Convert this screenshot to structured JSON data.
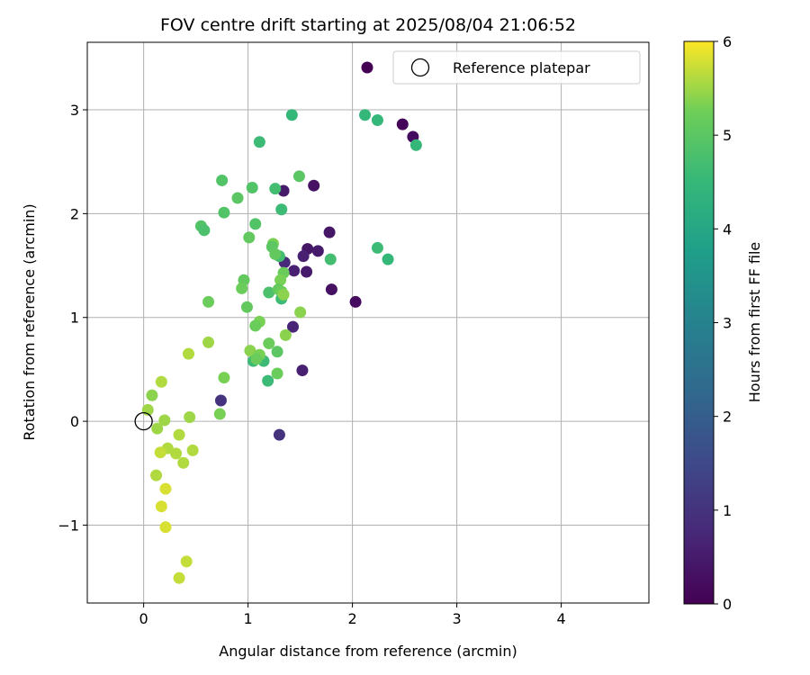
{
  "chart_data": {
    "type": "scatter",
    "title": "FOV centre drift starting at 2025/08/04 21:06:52",
    "xlabel": "Angular distance from reference (arcmin)",
    "ylabel": "Rotation from reference (arcmin)",
    "xlim": [
      -0.54,
      4.84
    ],
    "ylim": [
      -1.75,
      3.65
    ],
    "xticks": [
      0,
      1,
      2,
      3,
      4
    ],
    "xtick_labels": [
      "0",
      "1",
      "2",
      "3",
      "4"
    ],
    "yticks": [
      -1,
      0,
      1,
      2,
      3
    ],
    "ytick_labels": [
      "−1",
      "0",
      "1",
      "2",
      "3"
    ],
    "grid": true,
    "legend_position": "top-right",
    "legend": {
      "entries": [
        {
          "label": ""
        },
        {
          "label": "Reference platepar"
        }
      ]
    },
    "colorbar": {
      "label": "Hours from first FF file",
      "range": [
        0,
        6
      ],
      "ticks": [
        0,
        1,
        2,
        3,
        4,
        5,
        6
      ],
      "tick_labels": [
        "0",
        "1",
        "2",
        "3",
        "4",
        "5",
        "6"
      ],
      "colormap": "viridis"
    },
    "reference": {
      "x": 0,
      "y": 0
    },
    "points": [
      {
        "x": 2.48,
        "y": 2.86,
        "c": 0.1
      },
      {
        "x": 2.58,
        "y": 2.74,
        "c": 0.2
      },
      {
        "x": 1.63,
        "y": 2.27,
        "c": 0.3
      },
      {
        "x": 1.34,
        "y": 2.22,
        "c": 0.5
      },
      {
        "x": 1.78,
        "y": 1.82,
        "c": 0.4
      },
      {
        "x": 1.57,
        "y": 1.66,
        "c": 0.4
      },
      {
        "x": 1.67,
        "y": 1.64,
        "c": 0.5
      },
      {
        "x": 1.53,
        "y": 1.59,
        "c": 0.6
      },
      {
        "x": 1.35,
        "y": 1.53,
        "c": 0.8
      },
      {
        "x": 1.44,
        "y": 1.45,
        "c": 0.6
      },
      {
        "x": 1.56,
        "y": 1.44,
        "c": 0.5
      },
      {
        "x": 1.8,
        "y": 1.27,
        "c": 0.3
      },
      {
        "x": 2.03,
        "y": 1.15,
        "c": 0.2
      },
      {
        "x": 1.43,
        "y": 0.91,
        "c": 0.7
      },
      {
        "x": 1.52,
        "y": 0.49,
        "c": 0.6
      },
      {
        "x": 0.74,
        "y": 0.2,
        "c": 1.0
      },
      {
        "x": 1.3,
        "y": -0.13,
        "c": 1.0
      },
      {
        "x": 1.42,
        "y": 2.95,
        "c": 4.5
      },
      {
        "x": 2.12,
        "y": 2.95,
        "c": 4.5
      },
      {
        "x": 2.24,
        "y": 2.9,
        "c": 4.5
      },
      {
        "x": 2.61,
        "y": 2.66,
        "c": 4.5
      },
      {
        "x": 1.11,
        "y": 2.69,
        "c": 4.6
      },
      {
        "x": 1.26,
        "y": 2.24,
        "c": 4.7
      },
      {
        "x": 1.32,
        "y": 2.04,
        "c": 4.6
      },
      {
        "x": 2.24,
        "y": 1.67,
        "c": 4.6
      },
      {
        "x": 2.34,
        "y": 1.56,
        "c": 4.5
      },
      {
        "x": 1.79,
        "y": 1.56,
        "c": 4.7
      },
      {
        "x": 1.3,
        "y": 1.59,
        "c": 4.7
      },
      {
        "x": 1.32,
        "y": 1.18,
        "c": 4.6
      },
      {
        "x": 1.2,
        "y": 1.24,
        "c": 4.8
      },
      {
        "x": 1.15,
        "y": 0.58,
        "c": 4.6
      },
      {
        "x": 1.19,
        "y": 0.39,
        "c": 4.6
      },
      {
        "x": 1.05,
        "y": 0.58,
        "c": 4.6
      },
      {
        "x": 0.75,
        "y": 2.32,
        "c": 4.9
      },
      {
        "x": 1.04,
        "y": 2.25,
        "c": 4.9
      },
      {
        "x": 0.9,
        "y": 2.15,
        "c": 5.0
      },
      {
        "x": 1.49,
        "y": 2.36,
        "c": 5.0
      },
      {
        "x": 0.77,
        "y": 2.01,
        "c": 4.9
      },
      {
        "x": 0.55,
        "y": 1.88,
        "c": 4.9
      },
      {
        "x": 0.58,
        "y": 1.84,
        "c": 4.8
      },
      {
        "x": 1.07,
        "y": 1.9,
        "c": 4.9
      },
      {
        "x": 1.01,
        "y": 1.77,
        "c": 5.1
      },
      {
        "x": 1.24,
        "y": 1.71,
        "c": 5.3
      },
      {
        "x": 1.23,
        "y": 1.68,
        "c": 5.0
      },
      {
        "x": 1.26,
        "y": 1.61,
        "c": 5.1
      },
      {
        "x": 1.34,
        "y": 1.43,
        "c": 5.2
      },
      {
        "x": 0.96,
        "y": 1.36,
        "c": 5.1
      },
      {
        "x": 1.31,
        "y": 1.36,
        "c": 5.3
      },
      {
        "x": 0.94,
        "y": 1.28,
        "c": 5.2
      },
      {
        "x": 1.29,
        "y": 1.27,
        "c": 5.1
      },
      {
        "x": 1.32,
        "y": 1.25,
        "c": 5.2
      },
      {
        "x": 1.34,
        "y": 1.22,
        "c": 5.4
      },
      {
        "x": 0.62,
        "y": 1.15,
        "c": 5.2
      },
      {
        "x": 0.99,
        "y": 1.1,
        "c": 5.1
      },
      {
        "x": 1.5,
        "y": 1.05,
        "c": 5.4
      },
      {
        "x": 1.11,
        "y": 0.96,
        "c": 5.3
      },
      {
        "x": 1.07,
        "y": 0.92,
        "c": 5.2
      },
      {
        "x": 1.36,
        "y": 0.83,
        "c": 5.4
      },
      {
        "x": 1.2,
        "y": 0.75,
        "c": 5.2
      },
      {
        "x": 0.62,
        "y": 0.76,
        "c": 5.5
      },
      {
        "x": 1.02,
        "y": 0.68,
        "c": 5.4
      },
      {
        "x": 1.28,
        "y": 0.67,
        "c": 5.0
      },
      {
        "x": 1.11,
        "y": 0.64,
        "c": 5.3
      },
      {
        "x": 1.08,
        "y": 0.6,
        "c": 5.2
      },
      {
        "x": 0.43,
        "y": 0.65,
        "c": 5.6
      },
      {
        "x": 0.77,
        "y": 0.42,
        "c": 5.3
      },
      {
        "x": 1.28,
        "y": 0.46,
        "c": 5.2
      },
      {
        "x": 0.17,
        "y": 0.38,
        "c": 5.6
      },
      {
        "x": 0.08,
        "y": 0.25,
        "c": 5.4
      },
      {
        "x": 0.04,
        "y": 0.11,
        "c": 5.5
      },
      {
        "x": 0.73,
        "y": 0.07,
        "c": 5.3
      },
      {
        "x": 0.44,
        "y": 0.04,
        "c": 5.5
      },
      {
        "x": 0.2,
        "y": 0.01,
        "c": 5.5
      },
      {
        "x": 0.13,
        "y": -0.07,
        "c": 5.5
      },
      {
        "x": 0.34,
        "y": -0.13,
        "c": 5.6
      },
      {
        "x": 0.23,
        "y": -0.26,
        "c": 5.6
      },
      {
        "x": 0.16,
        "y": -0.3,
        "c": 5.7
      },
      {
        "x": 0.31,
        "y": -0.31,
        "c": 5.6
      },
      {
        "x": 0.47,
        "y": -0.28,
        "c": 5.6
      },
      {
        "x": 0.38,
        "y": -0.4,
        "c": 5.6
      },
      {
        "x": 0.12,
        "y": -0.52,
        "c": 5.6
      },
      {
        "x": 0.21,
        "y": -0.65,
        "c": 5.8
      },
      {
        "x": 0.17,
        "y": -0.82,
        "c": 5.8
      },
      {
        "x": 0.21,
        "y": -1.02,
        "c": 5.8
      },
      {
        "x": 0.41,
        "y": -1.35,
        "c": 5.7
      },
      {
        "x": 0.34,
        "y": -1.51,
        "c": 5.7
      }
    ]
  }
}
